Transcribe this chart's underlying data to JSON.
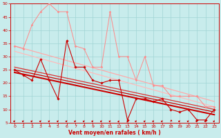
{
  "xlabel": "Vent moyen/en rafales ( km/h )",
  "xlim": [
    -0.5,
    23.5
  ],
  "ylim": [
    5,
    50
  ],
  "yticks": [
    5,
    10,
    15,
    20,
    25,
    30,
    35,
    40,
    45,
    50
  ],
  "xticks": [
    0,
    1,
    2,
    3,
    4,
    5,
    6,
    7,
    8,
    9,
    10,
    11,
    12,
    13,
    14,
    15,
    16,
    17,
    18,
    19,
    20,
    21,
    22,
    23
  ],
  "bg_color": "#c8ecec",
  "grid_color": "#a0d4d4",
  "axis_color": "#cc0000",
  "text_color": "#cc0000",
  "lines": [
    {
      "x": [
        0,
        1,
        2,
        3,
        4,
        5,
        6,
        7,
        8,
        9,
        10,
        11,
        12,
        13,
        14,
        15,
        16,
        17,
        18,
        19,
        20,
        21,
        22,
        23
      ],
      "y": [
        25,
        23,
        21,
        29,
        21,
        14,
        36,
        26,
        26,
        21,
        20,
        21,
        21,
        6,
        14,
        14,
        13,
        14,
        10,
        9,
        10,
        6,
        6,
        10
      ],
      "color": "#cc0000",
      "lw": 0.8,
      "marker": "D",
      "ms": 1.8,
      "zorder": 4
    },
    {
      "x": [
        0,
        23
      ],
      "y": [
        25,
        9
      ],
      "color": "#cc0000",
      "lw": 0.9,
      "marker": null,
      "ms": 0,
      "zorder": 3
    },
    {
      "x": [
        0,
        23
      ],
      "y": [
        26,
        10
      ],
      "color": "#dd3333",
      "lw": 0.9,
      "marker": null,
      "ms": 0,
      "zorder": 3
    },
    {
      "x": [
        0,
        23
      ],
      "y": [
        24,
        8
      ],
      "color": "#cc0000",
      "lw": 1.5,
      "marker": null,
      "ms": 0,
      "zorder": 3
    },
    {
      "x": [
        0,
        1,
        2,
        3,
        4,
        5,
        6,
        7,
        8,
        9,
        10,
        11,
        12,
        13,
        14,
        15,
        16,
        17,
        18,
        19,
        20,
        21,
        22,
        23
      ],
      "y": [
        34,
        33,
        42,
        47,
        50,
        47,
        47,
        34,
        33,
        26,
        26,
        47,
        30,
        30,
        21,
        30,
        19,
        19,
        15,
        15,
        15,
        15,
        11,
        11
      ],
      "color": "#ff8888",
      "lw": 0.7,
      "marker": "D",
      "ms": 1.5,
      "zorder": 4
    },
    {
      "x": [
        0,
        23
      ],
      "y": [
        34,
        13
      ],
      "color": "#ffaaaa",
      "lw": 0.9,
      "marker": null,
      "ms": 0,
      "zorder": 2
    },
    {
      "x": [
        0,
        23
      ],
      "y": [
        32,
        11
      ],
      "color": "#ffbbbb",
      "lw": 0.9,
      "marker": null,
      "ms": 0,
      "zorder": 2
    }
  ],
  "wind_dirs": [
    225,
    225,
    225,
    225,
    225,
    225,
    225,
    225,
    225,
    225,
    225,
    225,
    200,
    180,
    225,
    225,
    225,
    225,
    45,
    225,
    225,
    225,
    225,
    225
  ]
}
